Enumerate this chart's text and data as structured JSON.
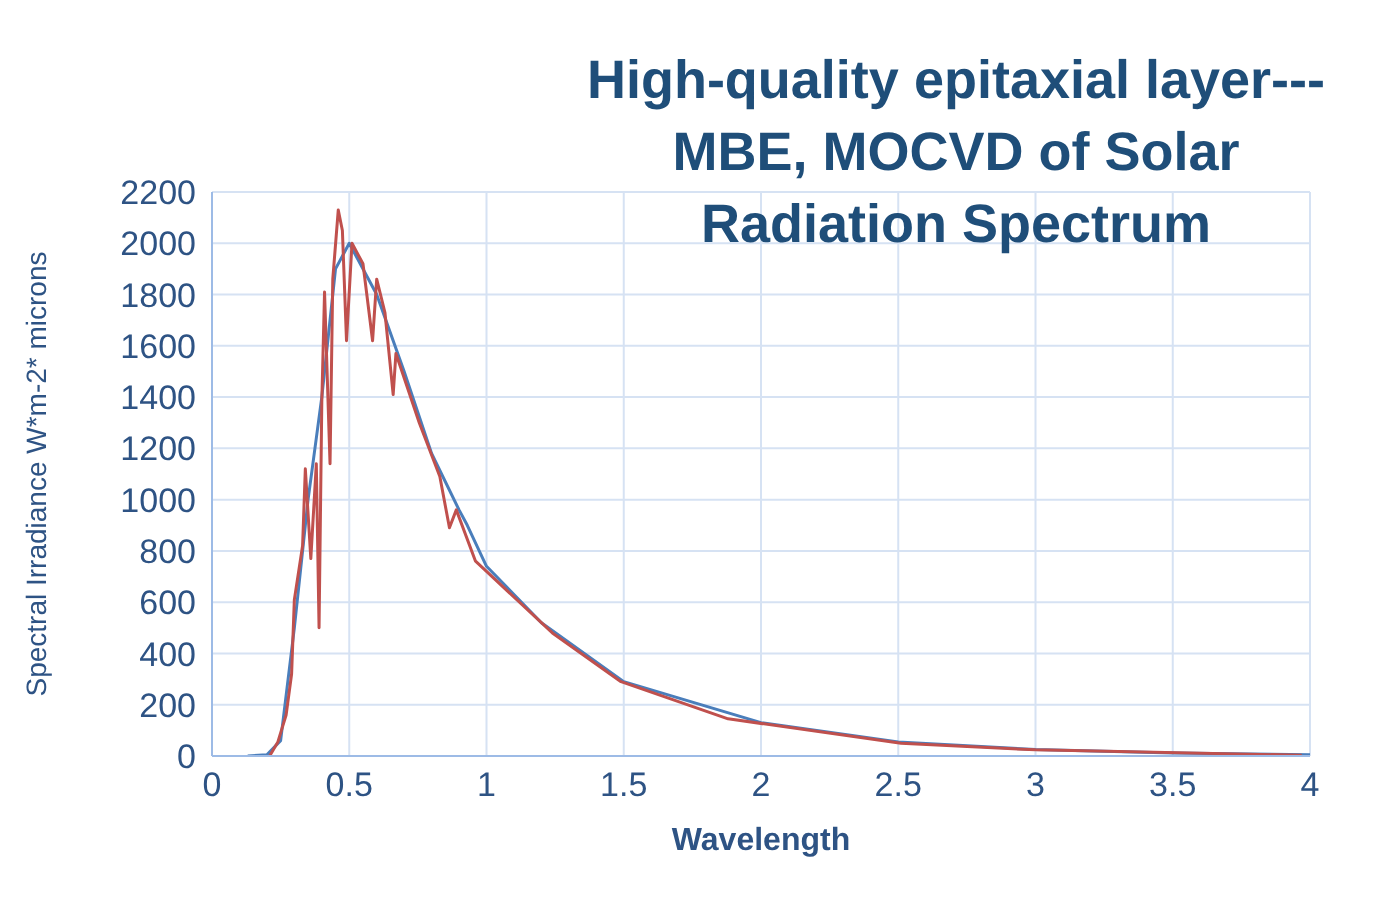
{
  "chart_data": {
    "type": "line",
    "title": "High-quality epitaxial layer---MBE, MOCVD of Solar Radiation Spectrum",
    "xlabel": "Wavelength",
    "ylabel": "Spectral Irradiance W*m-2* microns",
    "xlim": [
      0,
      4
    ],
    "xticks": [
      0,
      0.5,
      1,
      1.5,
      2,
      2.5,
      3,
      3.5,
      4
    ],
    "ylim": [
      0,
      2200
    ],
    "yticks": [
      0,
      200,
      400,
      600,
      800,
      1000,
      1200,
      1400,
      1600,
      1800,
      2000,
      2200
    ],
    "grid": true,
    "marker": "none",
    "line_style": "solid",
    "series": [
      {
        "color": "#4a7ebb",
        "x": [
          0.13,
          0.2,
          0.25,
          0.3,
          0.35,
          0.4,
          0.45,
          0.5,
          0.6,
          0.7,
          0.8,
          0.9,
          0.93,
          1.0,
          1.2,
          1.5,
          2.0,
          2.5,
          3.0,
          3.5,
          4.0
        ],
        "values": [
          0,
          5,
          60,
          500,
          1000,
          1400,
          1900,
          2000,
          1800,
          1500,
          1180,
          960,
          900,
          740,
          520,
          290,
          130,
          55,
          25,
          12,
          5
        ]
      },
      {
        "color": "#c0504d",
        "x": [
          0.21,
          0.24,
          0.27,
          0.29,
          0.3,
          0.33,
          0.34,
          0.36,
          0.38,
          0.39,
          0.4,
          0.41,
          0.43,
          0.44,
          0.46,
          0.475,
          0.49,
          0.51,
          0.55,
          0.585,
          0.6,
          0.63,
          0.66,
          0.67,
          0.755,
          0.83,
          0.865,
          0.89,
          0.96,
          1.0,
          1.24,
          1.49,
          1.88,
          2.51,
          3.0,
          3.97
        ],
        "values": [
          0,
          55,
          160,
          320,
          610,
          820,
          1120,
          770,
          1140,
          500,
          1380,
          1810,
          1140,
          1860,
          2130,
          2050,
          1620,
          2000,
          1920,
          1620,
          1860,
          1730,
          1410,
          1570,
          1300,
          1090,
          890,
          960,
          760,
          720,
          480,
          290,
          145,
          50,
          24,
          3
        ]
      }
    ]
  }
}
